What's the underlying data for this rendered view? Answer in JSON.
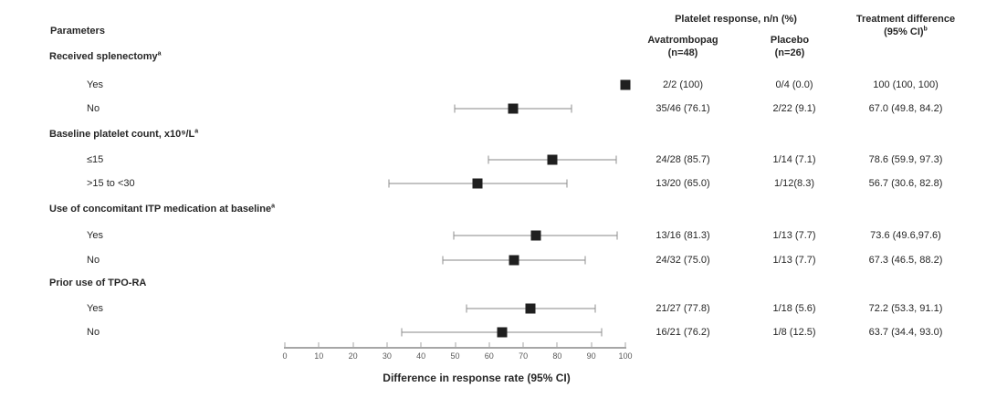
{
  "header": {
    "parameters": "Parameters",
    "response_group": "Platelet response, n/n (%)",
    "col_avatrombopag": {
      "name": "Avatrombopag",
      "n": "(n=48)"
    },
    "col_placebo": {
      "name": "Placebo",
      "n": "(n=26)"
    },
    "col_difference": {
      "line1": "Treatment difference",
      "line2": "(95% CI)",
      "sup": "b"
    }
  },
  "chart_data": {
    "type": "scatter",
    "subtype": "forest-plot",
    "title": "",
    "xlabel": "Difference in response rate (95% CI)",
    "xlim": [
      0,
      100
    ],
    "xticks": [
      0,
      10,
      20,
      30,
      40,
      50,
      60,
      70,
      80,
      90,
      100
    ],
    "grid": false,
    "columns": [
      "Avatrombopag (n=48)",
      "Placebo (n=26)",
      "Treatment difference (95% CI)"
    ],
    "groups": [
      {
        "label": "Received splenectomy",
        "label_sup": "a",
        "rows": [
          {
            "label": "Yes",
            "estimate": 100,
            "ci": [
              100,
              100
            ],
            "avatrombopag": "2/2 (100)",
            "placebo": "0/4 (0.0)",
            "difference": "100 (100, 100)"
          },
          {
            "label": "No",
            "estimate": 67.0,
            "ci": [
              49.8,
              84.2
            ],
            "avatrombopag": "35/46 (76.1)",
            "placebo": "2/22 (9.1)",
            "difference": "67.0 (49.8, 84.2)"
          }
        ]
      },
      {
        "label": "Baseline platelet count, x10⁹/L",
        "label_sup": "a",
        "rows": [
          {
            "label": "≤15",
            "estimate": 78.6,
            "ci": [
              59.9,
              97.3
            ],
            "avatrombopag": "24/28 (85.7)",
            "placebo": "1/14 (7.1)",
            "difference": "78.6 (59.9, 97.3)"
          },
          {
            "label": ">15 to <30",
            "estimate": 56.7,
            "ci": [
              30.6,
              82.8
            ],
            "avatrombopag": "13/20 (65.0)",
            "placebo": "1/12(8.3)",
            "difference": "56.7 (30.6, 82.8)"
          }
        ]
      },
      {
        "label": "Use of concomitant ITP medication at baseline",
        "label_sup": "a",
        "rows": [
          {
            "label": "Yes",
            "estimate": 73.6,
            "ci": [
              49.6,
              97.6
            ],
            "avatrombopag": "13/16 (81.3)",
            "placebo": "1/13 (7.7)",
            "difference": "73.6 (49.6,97.6)"
          },
          {
            "label": "No",
            "estimate": 67.3,
            "ci": [
              46.5,
              88.2
            ],
            "avatrombopag": "24/32 (75.0)",
            "placebo": "1/13 (7.7)",
            "difference": "67.3 (46.5, 88.2)"
          }
        ]
      },
      {
        "label": "Prior use of TPO-RA",
        "label_sup": "",
        "rows": [
          {
            "label": "Yes",
            "estimate": 72.2,
            "ci": [
              53.3,
              91.1
            ],
            "avatrombopag": "21/27 (77.8)",
            "placebo": "1/18 (5.6)",
            "difference": "72.2 (53.3, 91.1)"
          },
          {
            "label": "No",
            "estimate": 63.7,
            "ci": [
              34.4,
              93.0
            ],
            "avatrombopag": "16/21 (76.2)",
            "placebo": "1/8 (12.5)",
            "difference": "63.7 (34.4, 93.0)"
          }
        ]
      }
    ],
    "colors": {
      "marker": "#1f1f1f",
      "ci_line": "#c3c3c3",
      "ci_cap": "#8f8f8f",
      "axis_line": "#a6a6a6",
      "tick_label": "#595959",
      "text": "#262626"
    }
  }
}
